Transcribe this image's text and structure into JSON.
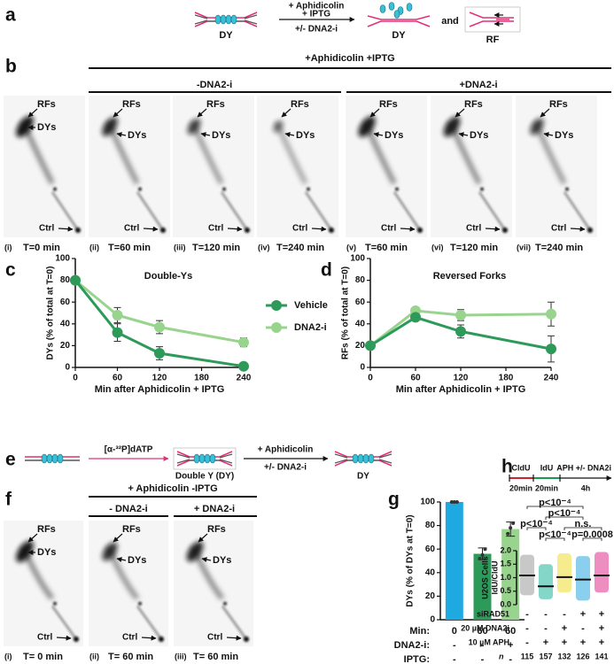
{
  "panel_labels": [
    "a",
    "b",
    "c",
    "d",
    "e",
    "f",
    "g",
    "h"
  ],
  "a": {
    "substrate": "DY",
    "treatment": [
      "+ Aphidicolin",
      "+ IPTG",
      "+/- DNA2-i"
    ],
    "product": "DY",
    "conjunction": "and",
    "alternative": "RF"
  },
  "b": {
    "header": "+Aphidicolin +IPTG",
    "groups": [
      "-DNA2-i",
      "+DNA2-i"
    ],
    "rfs": "RFs",
    "dys": "DYs",
    "ctrl": "Ctrl",
    "lanes": [
      {
        "index": "(i)",
        "time": "T=0 min"
      },
      {
        "index": "(ii)",
        "time": "T=60 min"
      },
      {
        "index": "(iii)",
        "time": "T=120 min"
      },
      {
        "index": "(iv)",
        "time": "T=240 min"
      },
      {
        "index": "(v)",
        "time": "T=60 min"
      },
      {
        "index": "(vi)",
        "time": "T=120 min"
      },
      {
        "index": "(vii)",
        "time": "T=240 min"
      }
    ]
  },
  "e": {
    "label": "[α-³²P]dATP",
    "intermediate": "Double Y (DY)",
    "treatment": [
      "+ Aphidicolin",
      "+/- DNA2-i"
    ],
    "product": "DY"
  },
  "f": {
    "header": "+ Aphidicolin -IPTG",
    "groups": [
      "- DNA2-i",
      "+ DNA2-i"
    ],
    "rfs": "RFs",
    "dys": "DYs",
    "ctrl": "Ctrl",
    "lanes": [
      {
        "index": "(i)",
        "time": "T= 0 min"
      },
      {
        "index": "(ii)",
        "time": "T= 60 min"
      },
      {
        "index": "(iii)",
        "time": "T= 60 min"
      }
    ]
  },
  "h_protocol": {
    "steps": [
      "CldU",
      "IdU",
      "APH +/- DNA2i"
    ],
    "durations": [
      "20min",
      "20min",
      "4h"
    ]
  },
  "chart_data": [
    {
      "type": "line",
      "title": "Double-Ys",
      "x_label": "Min after Aphidicolin + IPTG",
      "y_label": "DYs (% of total at T=0)",
      "x": [
        0,
        60,
        120,
        240
      ],
      "xlim": [
        0,
        240
      ],
      "xticks": [
        0,
        60,
        120,
        180,
        240
      ],
      "ylim": [
        0,
        100
      ],
      "yticks": [
        0,
        20,
        40,
        60,
        80,
        100
      ],
      "legend": "right",
      "series": [
        {
          "name": "Vehicle",
          "color": "#2e9a5a",
          "values": [
            80,
            32,
            13,
            1
          ],
          "errors": [
            0,
            8,
            6,
            1
          ]
        },
        {
          "name": "DNA2-i",
          "color": "#98d48e",
          "values": [
            80,
            48,
            37,
            23
          ],
          "errors": [
            0,
            7,
            6,
            4
          ]
        }
      ]
    },
    {
      "type": "line",
      "title": "Reversed Forks",
      "x_label": "Min after Aphidicolin + IPTG",
      "y_label": "RFs (% of total at T=0)",
      "x": [
        0,
        60,
        120,
        240
      ],
      "xlim": [
        0,
        240
      ],
      "xticks": [
        0,
        60,
        120,
        180,
        240
      ],
      "ylim": [
        0,
        100
      ],
      "yticks": [
        0,
        20,
        40,
        60,
        80,
        100
      ],
      "series": [
        {
          "color": "#2e9a5a",
          "values": [
            20,
            46,
            33,
            17
          ],
          "errors": [
            0,
            3,
            6,
            12
          ]
        },
        {
          "color": "#98d48e",
          "values": [
            20,
            52,
            48,
            49
          ],
          "errors": [
            0,
            3,
            5,
            11
          ]
        }
      ]
    },
    {
      "type": "bar",
      "y_label": "DYs (% of DYs at T=0)",
      "values": [
        100,
        56,
        77
      ],
      "errors": [
        0,
        5,
        6
      ],
      "points": [
        [
          100,
          100,
          100
        ],
        [
          52,
          55,
          60
        ],
        [
          73,
          78,
          82
        ]
      ],
      "colors": [
        "#1ea9e0",
        "#2e9a5a",
        "#98d48e"
      ],
      "ylim": [
        0,
        100
      ],
      "yticks": [
        0,
        20,
        40,
        60,
        80,
        100
      ],
      "rows": [
        {
          "label": "Min:",
          "values": [
            0,
            60,
            60
          ]
        },
        {
          "label": "DNA2-i:",
          "values": [
            "-",
            "-",
            "+"
          ]
        },
        {
          "label": "IPTG:",
          "values": [
            "-",
            "-",
            "-"
          ]
        }
      ]
    },
    {
      "type": "dot",
      "y_label": [
        "U2OS Cells",
        "IdU/CldU"
      ],
      "medians": [
        1.08,
        0.68,
        1.02,
        0.93,
        1.08
      ],
      "ranges": [
        [
          0.35,
          1.85
        ],
        [
          0.2,
          1.5
        ],
        [
          0.45,
          1.9
        ],
        [
          0.15,
          1.8
        ],
        [
          0.45,
          1.95
        ]
      ],
      "colors": [
        "#9a9a9a",
        "#1fb59a",
        "#f0dc30",
        "#2aa8e0",
        "#e0308a"
      ],
      "ylim": [
        0,
        2
      ],
      "yticks": [
        {
          "value": 0,
          "label": "0.0"
        },
        {
          "value": 0.5,
          "label": "0.5"
        },
        {
          "value": 1,
          "label": "1.0"
        },
        {
          "value": 1.5,
          "label": "1.5"
        },
        {
          "value": 2,
          "label": "2.0"
        }
      ],
      "comparisons": [
        {
          "groups": [
            0,
            3
          ],
          "label": "p<10⁻⁴"
        },
        {
          "groups": [
            1,
            3
          ],
          "label": "p<10⁻⁴"
        },
        {
          "groups": [
            0,
            1
          ],
          "label": "p<10⁻⁴"
        },
        {
          "groups": [
            2,
            4
          ],
          "label": "n.s."
        },
        {
          "groups": [
            1,
            2
          ],
          "label": "p<10⁻⁴"
        },
        {
          "groups": [
            3,
            4
          ],
          "label": "p=0.0008"
        }
      ],
      "rows": [
        {
          "label": "siRAD51",
          "values": [
            "-",
            "-",
            "-",
            "+",
            "+"
          ]
        },
        {
          "label": "20 µM DNA2i",
          "values": [
            "-",
            "-",
            "+",
            "-",
            "+"
          ]
        },
        {
          "label": "10 µM APH",
          "values": [
            "-",
            "+",
            "+",
            "+",
            "+"
          ]
        }
      ],
      "n_label": "n",
      "n": [
        115,
        157,
        132,
        126,
        141
      ]
    }
  ]
}
